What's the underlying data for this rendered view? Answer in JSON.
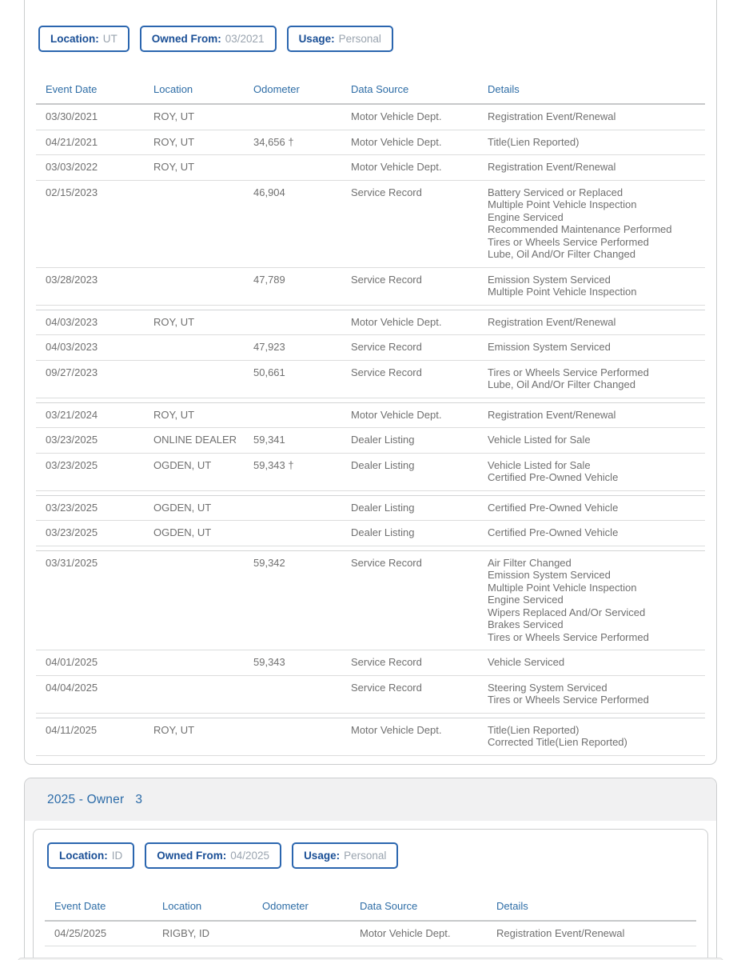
{
  "colors": {
    "badge_border": "#2b66af",
    "badge_label": "#1a4f96",
    "badge_value": "#9aa4af",
    "table_header_blue": "#2e6da6",
    "section_title_blue": "#2b6ba8",
    "body_text": "#707070",
    "card_border": "#cbcdce",
    "header_band_bg": "#f1f1f2"
  },
  "table_headers": [
    "Event Date",
    "Location",
    "Odometer",
    "Data Source",
    "Details"
  ],
  "owner2": {
    "badges": [
      {
        "label": "Location:",
        "value": "UT"
      },
      {
        "label": "Owned From:",
        "value": "03/2021"
      },
      {
        "label": "Usage:",
        "value": "Personal"
      }
    ],
    "rows": [
      {
        "date": "03/30/2021",
        "location": "ROY, UT",
        "odometer": "",
        "source": "Motor Vehicle Dept.",
        "details": [
          "Registration Event/Renewal"
        ],
        "group_start": false
      },
      {
        "date": "04/21/2021",
        "location": "ROY, UT",
        "odometer": "34,656 †",
        "source": "Motor Vehicle Dept.",
        "details": [
          "Title(Lien Reported)"
        ],
        "group_start": false
      },
      {
        "date": "03/03/2022",
        "location": "ROY, UT",
        "odometer": "",
        "source": "Motor Vehicle Dept.",
        "details": [
          "Registration Event/Renewal"
        ],
        "group_start": false
      },
      {
        "date": "02/15/2023",
        "location": "",
        "odometer": "46,904",
        "source": "Service Record",
        "details": [
          "Battery Serviced or Replaced",
          "Multiple Point Vehicle Inspection",
          "Engine Serviced",
          "Recommended Maintenance Performed",
          "Tires or Wheels Service Performed",
          "Lube, Oil And/Or Filter Changed"
        ],
        "group_start": false
      },
      {
        "date": "03/28/2023",
        "location": "",
        "odometer": "47,789",
        "source": "Service Record",
        "details": [
          "Emission System Serviced",
          "Multiple Point Vehicle Inspection"
        ],
        "group_start": false
      },
      {
        "date": "04/03/2023",
        "location": "ROY, UT",
        "odometer": "",
        "source": "Motor Vehicle Dept.",
        "details": [
          "Registration Event/Renewal"
        ],
        "group_start": true
      },
      {
        "date": "04/03/2023",
        "location": "",
        "odometer": "47,923",
        "source": "Service Record",
        "details": [
          "Emission System Serviced"
        ],
        "group_start": false
      },
      {
        "date": "09/27/2023",
        "location": "",
        "odometer": "50,661",
        "source": "Service Record",
        "details": [
          "Tires or Wheels Service Performed",
          "Lube, Oil And/Or Filter Changed"
        ],
        "group_start": false
      },
      {
        "date": "03/21/2024",
        "location": "ROY, UT",
        "odometer": "",
        "source": "Motor Vehicle Dept.",
        "details": [
          "Registration Event/Renewal"
        ],
        "group_start": true
      },
      {
        "date": "03/23/2025",
        "location": "ONLINE DEALER",
        "odometer": "59,341",
        "source": "Dealer Listing",
        "details": [
          "Vehicle Listed for Sale"
        ],
        "group_start": false
      },
      {
        "date": "03/23/2025",
        "location": "OGDEN, UT",
        "odometer": "59,343 †",
        "source": "Dealer Listing",
        "details": [
          "Vehicle Listed for Sale",
          "Certified Pre-Owned Vehicle"
        ],
        "group_start": false
      },
      {
        "date": "03/23/2025",
        "location": "OGDEN, UT",
        "odometer": "",
        "source": "Dealer Listing",
        "details": [
          "Certified Pre-Owned Vehicle"
        ],
        "group_start": true
      },
      {
        "date": "03/23/2025",
        "location": "OGDEN, UT",
        "odometer": "",
        "source": "Dealer Listing",
        "details": [
          "Certified Pre-Owned Vehicle"
        ],
        "group_start": false
      },
      {
        "date": "03/31/2025",
        "location": "",
        "odometer": "59,342",
        "source": "Service Record",
        "details": [
          "Air Filter Changed",
          "Emission System Serviced",
          "Multiple Point Vehicle Inspection",
          "Engine Serviced",
          "Wipers Replaced And/Or Serviced",
          "Brakes Serviced",
          "Tires or Wheels Service Performed"
        ],
        "group_start": true
      },
      {
        "date": "04/01/2025",
        "location": "",
        "odometer": "59,343",
        "source": "Service Record",
        "details": [
          "Vehicle Serviced"
        ],
        "group_start": false
      },
      {
        "date": "04/04/2025",
        "location": "",
        "odometer": "",
        "source": "Service Record",
        "details": [
          "Steering System Serviced",
          "Tires or Wheels Service Performed"
        ],
        "group_start": false
      },
      {
        "date": "04/11/2025",
        "location": "ROY, UT",
        "odometer": "",
        "source": "Motor Vehicle Dept.",
        "details": [
          "Title(Lien Reported)",
          "Corrected Title(Lien Reported)"
        ],
        "group_start": true
      }
    ]
  },
  "owner3": {
    "section_title": "2025 - Owner",
    "owner_number": "3",
    "badges": [
      {
        "label": "Location:",
        "value": "ID"
      },
      {
        "label": "Owned From:",
        "value": "04/2025"
      },
      {
        "label": "Usage:",
        "value": "Personal"
      }
    ],
    "rows": [
      {
        "date": "04/25/2025",
        "location": "RIGBY, ID",
        "odometer": "",
        "source": "Motor Vehicle Dept.",
        "details": [
          "Registration Event/Renewal"
        ],
        "group_start": false
      }
    ]
  }
}
